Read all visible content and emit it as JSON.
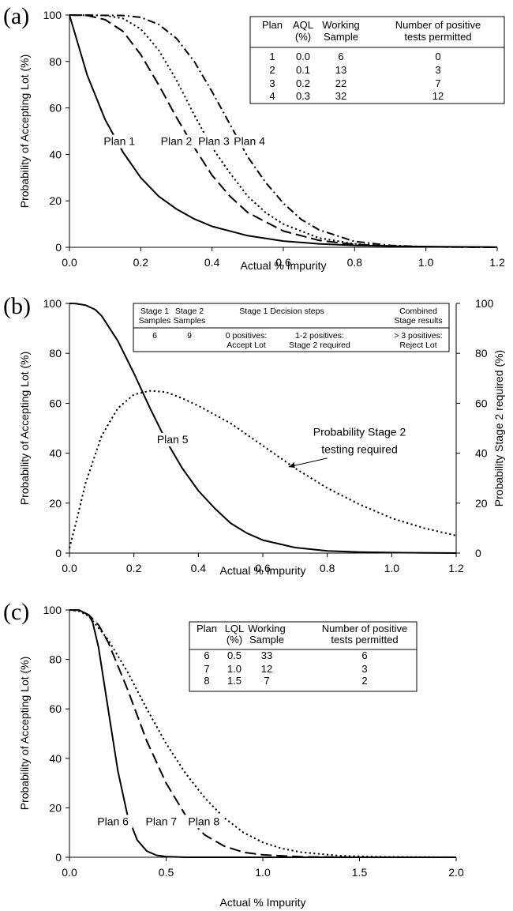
{
  "chart_data": [
    {
      "type": "line",
      "panel_label": "(a)",
      "xlabel": "Actual % Impurity",
      "ylabel": "Probability of Accepting Lot (%)",
      "xlim": [
        0,
        1.2
      ],
      "ylim": [
        0,
        100
      ],
      "x_ticks": [
        "0.0",
        "0.2",
        "0.4",
        "0.6",
        "0.8",
        "1.0",
        "1.2"
      ],
      "y_ticks": [
        "0",
        "20",
        "40",
        "60",
        "80",
        "100"
      ],
      "series": [
        {
          "name": "Plan 1",
          "style": "solid",
          "x": [
            0,
            0.05,
            0.1,
            0.15,
            0.2,
            0.25,
            0.3,
            0.35,
            0.4,
            0.5,
            0.6,
            0.7,
            0.8,
            0.9,
            1.0,
            1.2
          ],
          "y": [
            100,
            74,
            55,
            41,
            30,
            22,
            16.5,
            12.2,
            9,
            5,
            2.7,
            1.5,
            0.8,
            0.5,
            0.3,
            0.1
          ]
        },
        {
          "name": "Plan 2",
          "style": "long-dash",
          "x": [
            0,
            0.05,
            0.1,
            0.15,
            0.2,
            0.25,
            0.3,
            0.35,
            0.4,
            0.45,
            0.5,
            0.6,
            0.7,
            0.8,
            0.9,
            1.0,
            1.2
          ],
          "y": [
            100,
            99.8,
            98,
            93,
            83,
            70,
            56,
            43,
            31,
            22,
            15,
            7,
            3,
            1.2,
            0.5,
            0.2,
            0
          ]
        },
        {
          "name": "Plan 3",
          "style": "dot",
          "x": [
            0,
            0.1,
            0.15,
            0.2,
            0.25,
            0.3,
            0.35,
            0.4,
            0.45,
            0.5,
            0.55,
            0.6,
            0.7,
            0.8,
            0.9,
            1.0,
            1.2
          ],
          "y": [
            100,
            99.8,
            98.5,
            94,
            85,
            72,
            57,
            43,
            32,
            22,
            15,
            10,
            4,
            1.5,
            0.5,
            0.2,
            0
          ]
        },
        {
          "name": "Plan 4",
          "style": "dash-dot",
          "x": [
            0,
            0.15,
            0.2,
            0.25,
            0.3,
            0.35,
            0.4,
            0.45,
            0.5,
            0.55,
            0.6,
            0.65,
            0.7,
            0.8,
            0.9,
            1.0,
            1.2
          ],
          "y": [
            100,
            99.8,
            99,
            96,
            90,
            80,
            67,
            53,
            39,
            28,
            19,
            12,
            7.5,
            2.5,
            0.8,
            0.2,
            0
          ]
        }
      ],
      "annotations": [
        {
          "text": "Plan 1",
          "x": 0.14,
          "y": 44
        },
        {
          "text": "Plan 2",
          "x": 0.3,
          "y": 44
        },
        {
          "text": "Plan 3",
          "x": 0.405,
          "y": 44
        },
        {
          "text": "Plan 4",
          "x": 0.505,
          "y": 44
        }
      ],
      "table": {
        "headers": [
          [
            "Plan"
          ],
          [
            "AQL",
            "(%)"
          ],
          [
            "Working",
            "Sample"
          ],
          [
            "Number of positive",
            "tests permitted"
          ]
        ],
        "rows": [
          [
            "1",
            "0.0",
            "6",
            "0"
          ],
          [
            "2",
            "0.1",
            "13",
            "3"
          ],
          [
            "3",
            "0.2",
            "22",
            "7"
          ],
          [
            "4",
            "0.3",
            "32",
            "12"
          ]
        ]
      }
    },
    {
      "type": "line",
      "panel_label": "(b)",
      "xlabel": "Actual % Impurity",
      "ylabel": "Probability of Accepting Lot (%)",
      "y2label": "Probability Stage 2 required (%)",
      "xlim": [
        0,
        1.2
      ],
      "ylim": [
        0,
        100
      ],
      "x_ticks": [
        "0.0",
        "0.2",
        "0.4",
        "0.6",
        "0.8",
        "1.0",
        "1.2"
      ],
      "y_ticks": [
        "0",
        "20",
        "40",
        "60",
        "80",
        "100"
      ],
      "y2_ticks": [
        "0",
        "20",
        "40",
        "60",
        "80",
        "100"
      ],
      "series": [
        {
          "name": "Plan 5",
          "style": "solid",
          "x": [
            0,
            0.02,
            0.05,
            0.08,
            0.1,
            0.15,
            0.2,
            0.25,
            0.3,
            0.35,
            0.4,
            0.45,
            0.5,
            0.55,
            0.6,
            0.7,
            0.8,
            0.9,
            1.0,
            1.2
          ],
          "y": [
            100,
            99.9,
            99.3,
            97.5,
            95,
            85,
            72,
            58,
            45,
            34,
            25,
            18,
            12,
            8,
            5.2,
            2.2,
            0.9,
            0.4,
            0.2,
            0
          ]
        },
        {
          "name": "Probability Stage 2 testing required",
          "style": "dot",
          "x": [
            0,
            0.02,
            0.05,
            0.1,
            0.15,
            0.2,
            0.25,
            0.3,
            0.35,
            0.4,
            0.5,
            0.6,
            0.7,
            0.8,
            0.9,
            1.0,
            1.1,
            1.2
          ],
          "y": [
            2,
            12,
            28,
            47,
            58,
            63.5,
            65,
            64.5,
            62,
            59,
            52,
            43,
            34,
            26,
            19.5,
            14,
            10,
            7
          ]
        }
      ],
      "annotations": [
        {
          "text": "Plan 5",
          "x": 0.32,
          "y": 44
        },
        {
          "text": "Probability Stage 2",
          "x": 0.9,
          "y": 47
        },
        {
          "text": "testing required",
          "x": 0.9,
          "y": 40
        }
      ],
      "table": {
        "headers": [
          [
            "Stage 1",
            "Samples"
          ],
          [
            "Stage 2",
            "Samples"
          ],
          [
            "Stage 1 Decision steps"
          ],
          [
            "Combined",
            "Stage results"
          ]
        ],
        "rows": [
          [
            "6",
            "9",
            "0 positives:",
            "1-2 positives:",
            "> 3 positives:"
          ],
          [
            "",
            "",
            "Accept Lot",
            "Stage 2 required",
            "Reject Lot"
          ]
        ]
      }
    },
    {
      "type": "line",
      "panel_label": "(c)",
      "xlabel": "Actual % Impurity",
      "ylabel": "Probability of Accepting Lot (%)",
      "xlim": [
        0,
        2.0
      ],
      "ylim": [
        0,
        100
      ],
      "x_ticks": [
        "0.0",
        "0.5",
        "1.0",
        "1.5",
        "2.0"
      ],
      "y_ticks": [
        "0",
        "20",
        "40",
        "60",
        "80",
        "100"
      ],
      "series": [
        {
          "name": "Plan 6",
          "style": "solid",
          "x": [
            0,
            0.05,
            0.1,
            0.12,
            0.15,
            0.2,
            0.25,
            0.3,
            0.35,
            0.4,
            0.45,
            0.5,
            0.6,
            0.8,
            1.0,
            2.0
          ],
          "y": [
            100,
            99.9,
            98,
            95,
            85,
            60,
            35,
            17,
            7,
            2.5,
            0.8,
            0.3,
            0,
            0,
            0,
            0
          ]
        },
        {
          "name": "Plan 7",
          "style": "long-dash",
          "x": [
            0,
            0.05,
            0.1,
            0.15,
            0.2,
            0.3,
            0.4,
            0.5,
            0.6,
            0.7,
            0.8,
            0.9,
            1.0,
            1.2,
            1.5,
            2.0
          ],
          "y": [
            100,
            99.9,
            98,
            94,
            87,
            68,
            47,
            30,
            17,
            9,
            4.5,
            2,
            1,
            0.2,
            0,
            0
          ]
        },
        {
          "name": "Plan 8",
          "style": "dot",
          "x": [
            0,
            0.05,
            0.1,
            0.2,
            0.3,
            0.4,
            0.5,
            0.6,
            0.7,
            0.8,
            0.9,
            1.0,
            1.1,
            1.2,
            1.4,
            1.6,
            2.0
          ],
          "y": [
            100,
            99.5,
            97.5,
            88,
            75,
            60,
            46,
            34,
            24,
            16,
            10,
            6,
            3.5,
            2,
            0.6,
            0.2,
            0
          ]
        }
      ],
      "annotations": [
        {
          "text": "Plan 6",
          "x": 0.225,
          "y": 13
        },
        {
          "text": "Plan 7",
          "x": 0.475,
          "y": 13
        },
        {
          "text": "Plan 8",
          "x": 0.695,
          "y": 13
        }
      ],
      "table": {
        "headers": [
          [
            "Plan"
          ],
          [
            "LQL",
            "(%)"
          ],
          [
            "Working",
            "Sample"
          ],
          [
            "Number of positive",
            "tests permitted"
          ]
        ],
        "rows": [
          [
            "6",
            "0.5",
            "33",
            "6"
          ],
          [
            "7",
            "1.0",
            "12",
            "3"
          ],
          [
            "8",
            "1.5",
            "7",
            "2"
          ]
        ]
      }
    }
  ]
}
